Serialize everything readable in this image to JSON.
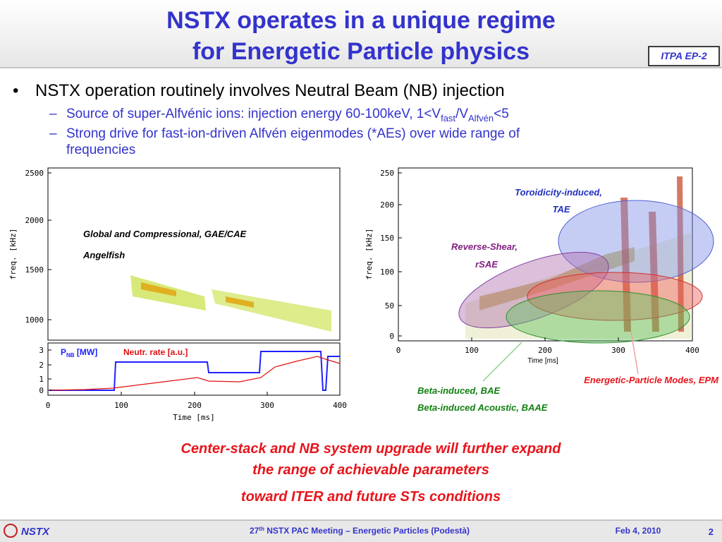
{
  "title": [
    "NSTX operates in a unique regime",
    "for Energetic Particle physics"
  ],
  "tag": "ITPA EP-2",
  "bullets": {
    "main": "NSTX operation routinely involves Neutral Beam (NB) injection",
    "sub1": [
      "Source of super-Alfvénic ions: injection energy 60-100keV, 1<V",
      "fast",
      "/V",
      "Alfvén",
      "<5"
    ],
    "sub2": [
      "Strong drive for fast-ion-driven Alfvén eigenmodes (*AEs) over wide range of",
      "frequencies"
    ]
  },
  "left_plot": {
    "yticks": [
      "2500",
      "2000",
      "1500",
      "1000"
    ],
    "ylabel": "freq. [kHz]",
    "annotations": [
      "Global and Compressional, GAE/CAE",
      "Angelfish"
    ],
    "lower_yticks": [
      "3",
      "2",
      "1",
      "0"
    ],
    "legend_pnb": [
      "P",
      "NB",
      " [MW]"
    ],
    "legend_neutr": "Neutr. rate [a.u.]",
    "xticks": [
      "0",
      "100",
      "200",
      "300",
      "400"
    ],
    "xlabel": "Time [ms]"
  },
  "right_plot": {
    "yticks": [
      "250",
      "200",
      "150",
      "100",
      "50",
      "0"
    ],
    "ylabel": "freq. [kHz]",
    "xticks": [
      "0",
      "100",
      "200",
      "300",
      "400"
    ],
    "xlabel": "Time [ms]",
    "labels": [
      "Toroidicity-induced,",
      "TAE",
      "Reverse-Shear,",
      "rSAE",
      "Energetic-Particle Modes, EPM",
      "Beta-induced, BAE",
      "Beta-induced Acoustic, BAAE"
    ]
  },
  "conclusion": [
    "Center-stack and NB system upgrade will further expand",
    "the range of achievable parameters",
    "toward ITER and future STs conditions"
  ],
  "footer": {
    "logo": "NSTX",
    "meeting": [
      "27",
      "th",
      " NSTX PAC Meeting – Energetic Particles (Podestà)"
    ],
    "date": "Feb 4, 2010",
    "page": "2"
  }
}
